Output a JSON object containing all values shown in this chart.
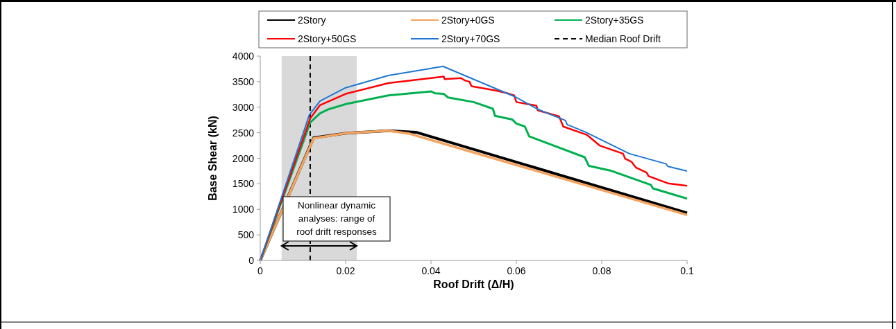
{
  "chart_data": {
    "type": "line",
    "xlabel": "Roof Drift (Δ/H)",
    "ylabel": "Base Shear (kN)",
    "xlim": [
      0,
      0.1
    ],
    "xticks": [
      0,
      0.02,
      0.04,
      0.06,
      0.08,
      0.1
    ],
    "ylim": [
      0,
      4000
    ],
    "yticks": [
      0,
      500,
      1000,
      1500,
      2000,
      2500,
      3000,
      3500,
      4000
    ],
    "grid": false,
    "legend": "top",
    "marker": "none",
    "line_style": "solid",
    "series": [
      {
        "name": "2Story",
        "color": "#000000",
        "x": [
          0,
          0.0125,
          0.02,
          0.03,
          0.0365,
          0.1
        ],
        "values": [
          0,
          2400,
          2490,
          2540,
          2510,
          930
        ]
      },
      {
        "name": "2Story+0GS",
        "color": "#f4a460",
        "x": [
          0,
          0.0125,
          0.02,
          0.03,
          0.035,
          0.1
        ],
        "values": [
          0,
          2390,
          2490,
          2540,
          2480,
          890
        ]
      },
      {
        "name": "2Story+35GS",
        "color": "#00b050",
        "x": [
          0,
          0.0117,
          0.014,
          0.016,
          0.02,
          0.03,
          0.04,
          0.041,
          0.043,
          0.044,
          0.05,
          0.0545,
          0.055,
          0.059,
          0.06,
          0.062,
          0.063,
          0.076,
          0.077,
          0.082,
          0.0915,
          0.092,
          0.1
        ],
        "values": [
          0,
          2700,
          2880,
          2960,
          3060,
          3230,
          3310,
          3270,
          3260,
          3190,
          3100,
          2970,
          2830,
          2760,
          2680,
          2620,
          2430,
          2020,
          1850,
          1760,
          1480,
          1410,
          1210
        ]
      },
      {
        "name": "2Story+50GS",
        "color": "#ff0000",
        "x": [
          0,
          0.0117,
          0.014,
          0.02,
          0.03,
          0.04,
          0.043,
          0.0432,
          0.047,
          0.048,
          0.049,
          0.0495,
          0.055,
          0.058,
          0.0595,
          0.06,
          0.0647,
          0.065,
          0.07,
          0.071,
          0.0765,
          0.0795,
          0.085,
          0.0855,
          0.087,
          0.088,
          0.0905,
          0.091,
          0.0955,
          0.1
        ],
        "values": [
          0,
          2780,
          3040,
          3260,
          3470,
          3570,
          3600,
          3550,
          3570,
          3520,
          3500,
          3410,
          3330,
          3270,
          3230,
          3100,
          3030,
          2940,
          2820,
          2620,
          2460,
          2250,
          2090,
          1990,
          1930,
          1820,
          1720,
          1650,
          1510,
          1460
        ]
      },
      {
        "name": "2Story+70GS",
        "color": "#1f77d0",
        "x": [
          0,
          0.0115,
          0.014,
          0.02,
          0.03,
          0.04,
          0.0428,
          0.0598,
          0.065,
          0.0715,
          0.0719,
          0.076,
          0.0865,
          0.0951,
          0.0955,
          0.1
        ],
        "values": [
          0,
          2850,
          3120,
          3380,
          3620,
          3760,
          3800,
          3200,
          2960,
          2740,
          2660,
          2520,
          2090,
          1890,
          1840,
          1750
        ]
      }
    ],
    "ref_lines": [
      {
        "axis": "x",
        "value": 0.0117,
        "label": "Median Roof Drift",
        "color": "#000000",
        "line_style": "dashed"
      }
    ],
    "bands": [
      {
        "axis": "x",
        "from": 0.005,
        "to": 0.0226,
        "color": "#d9d9d9"
      }
    ],
    "annotations": [
      {
        "text": "Nonlinear dynamic analyses: range of roof drift responses"
      }
    ]
  }
}
